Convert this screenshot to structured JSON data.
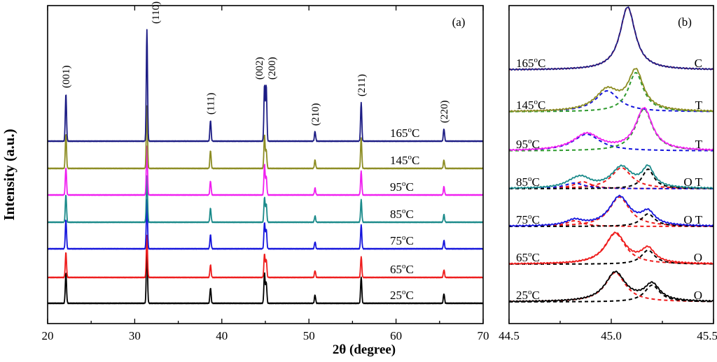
{
  "chart_data": [
    {
      "panel": "a",
      "type": "line",
      "title": "(a)",
      "xlabel": "2θ (degree)",
      "ylabel": "Intensity (a.u.)",
      "xlim": [
        20,
        70
      ],
      "xticks": [
        "20",
        "30",
        "40",
        "50",
        "60",
        "70"
      ],
      "peaks": [
        {
          "hkl": "(001)",
          "two_theta": 22.1
        },
        {
          "hkl": "(110)",
          "two_theta": 31.4
        },
        {
          "hkl": "(111)",
          "two_theta": 38.7
        },
        {
          "hkl": "(002)",
          "two_theta": 44.9
        },
        {
          "hkl": "(200)",
          "two_theta": 45.1
        },
        {
          "hkl": "(210)",
          "two_theta": 50.7
        },
        {
          "hkl": "(211)",
          "two_theta": 56.0
        },
        {
          "hkl": "(220)",
          "two_theta": 65.5
        }
      ],
      "peak_labels": [
        "(001)",
        "(110)",
        "(111)",
        "(002)",
        "(200)",
        "(210)",
        "(211)",
        "(220)"
      ],
      "series": [
        {
          "name": "25°C",
          "temp": "25",
          "color": "#000000",
          "offset": 0,
          "peak_heights": [
            44,
            80,
            22,
            44,
            30,
            12,
            38,
            14
          ]
        },
        {
          "name": "65°C",
          "temp": "65",
          "color": "#ee1c1c",
          "offset": 1,
          "peak_heights": [
            36,
            60,
            18,
            34,
            26,
            10,
            30,
            11
          ]
        },
        {
          "name": "75°C",
          "temp": "75",
          "color": "#1414dc",
          "offset": 2,
          "peak_heights": [
            42,
            70,
            20,
            38,
            28,
            10,
            34,
            12
          ]
        },
        {
          "name": "85°C",
          "temp": "85",
          "color": "#1a8a8a",
          "offset": 3,
          "peak_heights": [
            40,
            66,
            20,
            36,
            26,
            9,
            32,
            11
          ]
        },
        {
          "name": "95°C",
          "temp": "95",
          "color": "#f01ef0",
          "offset": 4,
          "peak_heights": [
            40,
            70,
            20,
            44,
            26,
            10,
            34,
            12
          ]
        },
        {
          "name": "145°C",
          "temp": "145",
          "color": "#8c8c22",
          "offset": 5,
          "peak_heights": [
            50,
            90,
            26,
            48,
            26,
            12,
            44,
            12
          ]
        },
        {
          "name": "165°C",
          "temp": "165",
          "color": "#1c1c84",
          "offset": 6,
          "peak_heights": [
            68,
            160,
            30,
            80,
            80,
            14,
            56,
            18
          ]
        }
      ]
    },
    {
      "panel": "b",
      "type": "line",
      "title": "(b)",
      "xlim": [
        44.5,
        45.5
      ],
      "xticks": [
        "44.5",
        "45.0",
        "45.5"
      ],
      "series": [
        {
          "temp": "165",
          "phase": "C",
          "color": "#1c1c84",
          "components": [
            {
              "center": 45.08,
              "width": 0.045,
              "height": 90,
              "color": "#ee1c1c"
            }
          ]
        },
        {
          "temp": "145",
          "phase": "T",
          "color": "#8c8c22",
          "components": [
            {
              "center": 44.98,
              "width": 0.07,
              "height": 30,
              "color": "#1414dc"
            },
            {
              "center": 45.12,
              "width": 0.045,
              "height": 56,
              "color": "#2e9a2e"
            }
          ]
        },
        {
          "temp": "95",
          "phase": "T",
          "color": "#f01ef0",
          "components": [
            {
              "center": 44.88,
              "width": 0.08,
              "height": 24,
              "color": "#1414dc"
            },
            {
              "center": 45.16,
              "width": 0.05,
              "height": 60,
              "color": "#2e9a2e"
            }
          ]
        },
        {
          "temp": "85",
          "phase": "O T",
          "color": "#1a8a8a",
          "components": [
            {
              "center": 44.86,
              "width": 0.05,
              "height": 10,
              "color": "#ee1c1c"
            },
            {
              "center": 45.05,
              "width": 0.06,
              "height": 30,
              "color": "#ee1c1c"
            },
            {
              "center": 44.82,
              "width": 0.06,
              "height": 8,
              "color": "#1414dc"
            },
            {
              "center": 45.18,
              "width": 0.035,
              "height": 28,
              "color": "#000000"
            }
          ]
        },
        {
          "temp": "75",
          "phase": "O T",
          "color": "#1414dc",
          "components": [
            {
              "center": 44.82,
              "width": 0.05,
              "height": 8,
              "color": "#ee1c1c"
            },
            {
              "center": 45.04,
              "width": 0.06,
              "height": 42,
              "color": "#ee1c1c"
            },
            {
              "center": 45.18,
              "width": 0.04,
              "height": 18,
              "color": "#000000"
            }
          ]
        },
        {
          "temp": "65",
          "phase": "O",
          "color": "#ee1c1c",
          "components": [
            {
              "center": 45.02,
              "width": 0.06,
              "height": 44,
              "color": "#ee1c1c"
            },
            {
              "center": 45.18,
              "width": 0.04,
              "height": 20,
              "color": "#000000"
            }
          ]
        },
        {
          "temp": "25",
          "phase": "O",
          "color": "#000000",
          "components": [
            {
              "center": 45.02,
              "width": 0.06,
              "height": 42,
              "color": "#ee1c1c"
            },
            {
              "center": 45.2,
              "width": 0.045,
              "height": 24,
              "color": "#000000"
            }
          ]
        }
      ]
    }
  ]
}
